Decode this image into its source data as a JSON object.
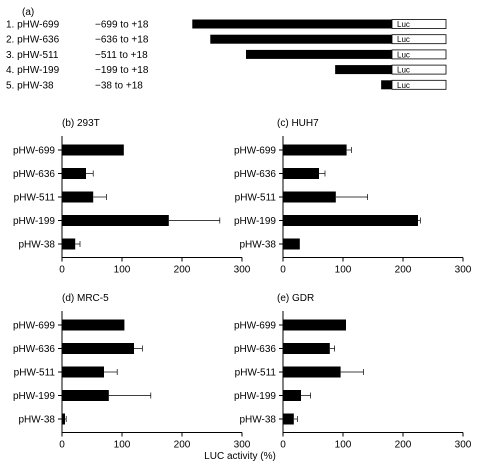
{
  "figure": {
    "panel_a": {
      "label": "(a)",
      "constructs": [
        {
          "num": "1.",
          "name": "pHW-699",
          "range": "−699 to +18",
          "start": -699
        },
        {
          "num": "2.",
          "name": "pHW-636",
          "range": "−636 to +18",
          "start": -636
        },
        {
          "num": "3.",
          "name": "pHW-511",
          "range": "−511 to +18",
          "start": -511
        },
        {
          "num": "4.",
          "name": "pHW-199",
          "range": "−199 to +18",
          "start": -199
        },
        {
          "num": "5.",
          "name": "pHW-38",
          "range": "−38 to +18",
          "start": -38
        }
      ],
      "reporter_label": "Luc"
    },
    "xlabel": "LUC activity (%)"
  },
  "chart_data": [
    {
      "type": "bar",
      "orientation": "horizontal",
      "title": "(b) 293T",
      "categories": [
        "pHW-699",
        "pHW-636",
        "pHW-511",
        "pHW-199",
        "pHW-38"
      ],
      "values": [
        103,
        40,
        52,
        178,
        22
      ],
      "errors": [
        0,
        12,
        22,
        85,
        8
      ],
      "xlim": [
        0,
        300
      ],
      "xticks": [
        "0",
        "100",
        "200",
        "300"
      ]
    },
    {
      "type": "bar",
      "orientation": "horizontal",
      "title": "(c) HUH7",
      "categories": [
        "pHW-699",
        "pHW-636",
        "pHW-511",
        "pHW-199",
        "pHW-38"
      ],
      "values": [
        106,
        60,
        88,
        225,
        28
      ],
      "errors": [
        8,
        10,
        53,
        4,
        0
      ],
      "xlim": [
        0,
        300
      ],
      "xticks": [
        "0",
        "100",
        "200",
        "300"
      ]
    },
    {
      "type": "bar",
      "orientation": "horizontal",
      "title": "(d) MRC-5",
      "categories": [
        "pHW-699",
        "pHW-636",
        "pHW-511",
        "pHW-199",
        "pHW-38"
      ],
      "values": [
        104,
        120,
        70,
        78,
        5
      ],
      "errors": [
        0,
        14,
        22,
        70,
        2
      ],
      "xlim": [
        0,
        300
      ],
      "xticks": [
        "0",
        "100",
        "200",
        "300"
      ]
    },
    {
      "type": "bar",
      "orientation": "horizontal",
      "title": "(e) GDR",
      "categories": [
        "pHW-699",
        "pHW-636",
        "pHW-511",
        "pHW-199",
        "pHW-38"
      ],
      "values": [
        105,
        78,
        96,
        30,
        18
      ],
      "errors": [
        0,
        8,
        38,
        16,
        6
      ],
      "xlim": [
        0,
        300
      ],
      "xticks": [
        "0",
        "100",
        "200",
        "300"
      ]
    }
  ]
}
